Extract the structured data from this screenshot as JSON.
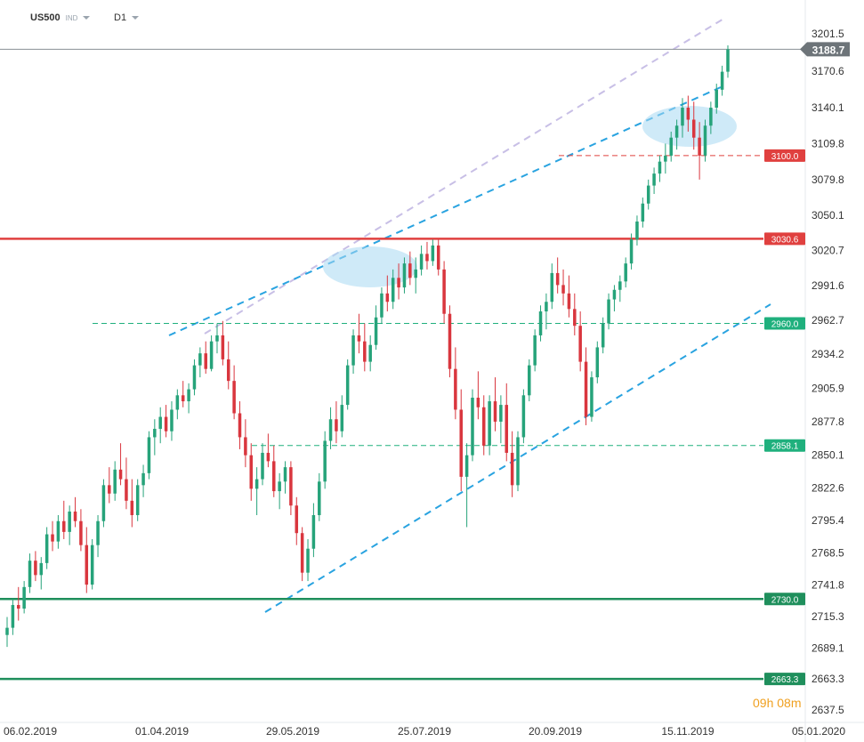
{
  "header": {
    "symbol": "US500",
    "symbol_type": "IND",
    "interval": "D1"
  },
  "timer": {
    "hours": "09",
    "h": "h",
    "minutes": "08",
    "m": "m"
  },
  "colors": {
    "up": "#26a37a",
    "down": "#d9363e",
    "resistance": "#e0403f",
    "support": "#1f8f5c",
    "trend": "#29a3e0",
    "channel_upper": "#c8bfe6",
    "highlight": "#a8d8f3"
  },
  "chart_data": {
    "type": "candlestick",
    "symbol": "US500",
    "interval": "D1",
    "ylim": [
      2630,
      3215
    ],
    "y_ticks": [
      3201.5,
      3170.6,
      3140.1,
      3109.8,
      3079.8,
      3050.1,
      3020.7,
      2991.6,
      2962.7,
      2934.2,
      2905.9,
      2877.8,
      2850.1,
      2822.6,
      2795.4,
      2768.5,
      2741.8,
      2715.3,
      2689.1,
      2663.3,
      2637.5
    ],
    "x_labels": [
      "06.02.2019",
      "01.04.2019",
      "29.05.2019",
      "25.07.2019",
      "20.09.2019",
      "15.11.2019",
      "05.01.2020"
    ],
    "last_price": 3188.7,
    "horizontal_levels": [
      {
        "value": 3100.0,
        "label": "3100.0",
        "color": "#e0403f",
        "style": "dashed"
      },
      {
        "value": 3030.6,
        "label": "3030.6",
        "color": "#e0403f",
        "style": "solid"
      },
      {
        "value": 2960.0,
        "label": "2960.0",
        "color": "#1fb07d",
        "style": "dashed"
      },
      {
        "value": 2858.1,
        "label": "2858.1",
        "color": "#1fb07d",
        "style": "dashed"
      },
      {
        "value": 2730.0,
        "label": "2730.0",
        "color": "#1f8f5c",
        "style": "solid"
      },
      {
        "value": 2663.3,
        "label": "2663.3",
        "color": "#1f8f5c",
        "style": "solid"
      }
    ],
    "candles_ohlc": [
      [
        2700,
        2715,
        2690,
        2706
      ],
      [
        2706,
        2730,
        2700,
        2725
      ],
      [
        2725,
        2740,
        2712,
        2722
      ],
      [
        2722,
        2745,
        2718,
        2740
      ],
      [
        2740,
        2768,
        2735,
        2762
      ],
      [
        2762,
        2770,
        2745,
        2750
      ],
      [
        2750,
        2765,
        2738,
        2760
      ],
      [
        2760,
        2790,
        2755,
        2784
      ],
      [
        2784,
        2795,
        2770,
        2778
      ],
      [
        2778,
        2800,
        2772,
        2795
      ],
      [
        2795,
        2812,
        2780,
        2786
      ],
      [
        2786,
        2808,
        2775,
        2803
      ],
      [
        2803,
        2815,
        2790,
        2795
      ],
      [
        2795,
        2805,
        2770,
        2775
      ],
      [
        2775,
        2790,
        2735,
        2742
      ],
      [
        2742,
        2780,
        2738,
        2775
      ],
      [
        2775,
        2800,
        2765,
        2795
      ],
      [
        2795,
        2830,
        2790,
        2825
      ],
      [
        2825,
        2840,
        2810,
        2818
      ],
      [
        2818,
        2845,
        2812,
        2838
      ],
      [
        2838,
        2860,
        2825,
        2830
      ],
      [
        2830,
        2848,
        2805,
        2812
      ],
      [
        2812,
        2830,
        2790,
        2800
      ],
      [
        2800,
        2830,
        2795,
        2825
      ],
      [
        2825,
        2842,
        2815,
        2835
      ],
      [
        2835,
        2870,
        2830,
        2865
      ],
      [
        2865,
        2880,
        2850,
        2872
      ],
      [
        2872,
        2890,
        2860,
        2882
      ],
      [
        2882,
        2892,
        2865,
        2870
      ],
      [
        2870,
        2895,
        2862,
        2888
      ],
      [
        2888,
        2905,
        2880,
        2900
      ],
      [
        2900,
        2912,
        2890,
        2895
      ],
      [
        2895,
        2910,
        2885,
        2905
      ],
      [
        2905,
        2930,
        2900,
        2925
      ],
      [
        2925,
        2940,
        2915,
        2935
      ],
      [
        2935,
        2945,
        2918,
        2922
      ],
      [
        2922,
        2950,
        2920,
        2945
      ],
      [
        2945,
        2960,
        2935,
        2950
      ],
      [
        2950,
        2962,
        2925,
        2930
      ],
      [
        2930,
        2945,
        2905,
        2912
      ],
      [
        2912,
        2925,
        2880,
        2885
      ],
      [
        2885,
        2895,
        2855,
        2865
      ],
      [
        2865,
        2880,
        2840,
        2850
      ],
      [
        2850,
        2860,
        2812,
        2822
      ],
      [
        2822,
        2840,
        2800,
        2830
      ],
      [
        2830,
        2860,
        2825,
        2852
      ],
      [
        2852,
        2868,
        2840,
        2845
      ],
      [
        2845,
        2858,
        2815,
        2820
      ],
      [
        2820,
        2835,
        2805,
        2828
      ],
      [
        2828,
        2845,
        2818,
        2840
      ],
      [
        2840,
        2845,
        2800,
        2808
      ],
      [
        2808,
        2815,
        2775,
        2785
      ],
      [
        2785,
        2790,
        2745,
        2752
      ],
      [
        2752,
        2780,
        2745,
        2772
      ],
      [
        2772,
        2810,
        2765,
        2800
      ],
      [
        2800,
        2835,
        2795,
        2828
      ],
      [
        2828,
        2870,
        2822,
        2862
      ],
      [
        2862,
        2890,
        2855,
        2880
      ],
      [
        2880,
        2895,
        2860,
        2870
      ],
      [
        2870,
        2900,
        2865,
        2892
      ],
      [
        2892,
        2930,
        2888,
        2925
      ],
      [
        2925,
        2955,
        2918,
        2950
      ],
      [
        2950,
        2968,
        2935,
        2945
      ],
      [
        2945,
        2960,
        2920,
        2928
      ],
      [
        2928,
        2950,
        2920,
        2942
      ],
      [
        2942,
        2975,
        2938,
        2965
      ],
      [
        2965,
        2990,
        2960,
        2985
      ],
      [
        2985,
        3000,
        2970,
        2978
      ],
      [
        2978,
        3005,
        2972,
        2998
      ],
      [
        2998,
        3010,
        2980,
        2990
      ],
      [
        2990,
        3015,
        2985,
        3010
      ],
      [
        3010,
        3020,
        2992,
        2998
      ],
      [
        2998,
        3015,
        2985,
        3005
      ],
      [
        3005,
        3025,
        3000,
        3018
      ],
      [
        3018,
        3028,
        3005,
        3012
      ],
      [
        3012,
        3030,
        3008,
        3025
      ],
      [
        3025,
        3030,
        3000,
        3005
      ],
      [
        3005,
        3012,
        2960,
        2968
      ],
      [
        2968,
        2975,
        2915,
        2922
      ],
      [
        2922,
        2940,
        2880,
        2888
      ],
      [
        2888,
        2905,
        2820,
        2832
      ],
      [
        2832,
        2860,
        2790,
        2850
      ],
      [
        2850,
        2905,
        2845,
        2898
      ],
      [
        2898,
        2920,
        2880,
        2890
      ],
      [
        2890,
        2900,
        2850,
        2858
      ],
      [
        2858,
        2900,
        2850,
        2895
      ],
      [
        2895,
        2915,
        2870,
        2878
      ],
      [
        2878,
        2900,
        2860,
        2892
      ],
      [
        2892,
        2910,
        2845,
        2852
      ],
      [
        2852,
        2870,
        2815,
        2825
      ],
      [
        2825,
        2870,
        2820,
        2865
      ],
      [
        2865,
        2905,
        2860,
        2900
      ],
      [
        2900,
        2930,
        2895,
        2925
      ],
      [
        2925,
        2955,
        2920,
        2950
      ],
      [
        2950,
        2975,
        2945,
        2970
      ],
      [
        2970,
        2985,
        2955,
        2978
      ],
      [
        2978,
        3010,
        2972,
        3002
      ],
      [
        3002,
        3015,
        2985,
        2992
      ],
      [
        2992,
        3005,
        2975,
        2985
      ],
      [
        2985,
        3000,
        2965,
        2972
      ],
      [
        2972,
        2985,
        2950,
        2958
      ],
      [
        2958,
        2970,
        2920,
        2928
      ],
      [
        2928,
        2940,
        2875,
        2882
      ],
      [
        2882,
        2920,
        2878,
        2915
      ],
      [
        2915,
        2945,
        2910,
        2940
      ],
      [
        2940,
        2965,
        2935,
        2960
      ],
      [
        2960,
        2985,
        2955,
        2980
      ],
      [
        2980,
        2992,
        2970,
        2988
      ],
      [
        2988,
        3000,
        2978,
        2995
      ],
      [
        2995,
        3015,
        2990,
        3010
      ],
      [
        3010,
        3035,
        3005,
        3030
      ],
      [
        3030,
        3050,
        3025,
        3045
      ],
      [
        3045,
        3065,
        3040,
        3060
      ],
      [
        3060,
        3080,
        3055,
        3075
      ],
      [
        3075,
        3090,
        3068,
        3085
      ],
      [
        3085,
        3100,
        3078,
        3095
      ],
      [
        3095,
        3110,
        3085,
        3100
      ],
      [
        3100,
        3120,
        3095,
        3115
      ],
      [
        3115,
        3130,
        3105,
        3125
      ],
      [
        3125,
        3148,
        3115,
        3140
      ],
      [
        3140,
        3150,
        3120,
        3130
      ],
      [
        3130,
        3145,
        3105,
        3115
      ],
      [
        3115,
        3128,
        3080,
        3100
      ],
      [
        3100,
        3130,
        3095,
        3125
      ],
      [
        3125,
        3145,
        3118,
        3140
      ],
      [
        3140,
        3160,
        3135,
        3155
      ],
      [
        3155,
        3175,
        3150,
        3170
      ],
      [
        3170,
        3192,
        3165,
        3188.7
      ]
    ]
  }
}
